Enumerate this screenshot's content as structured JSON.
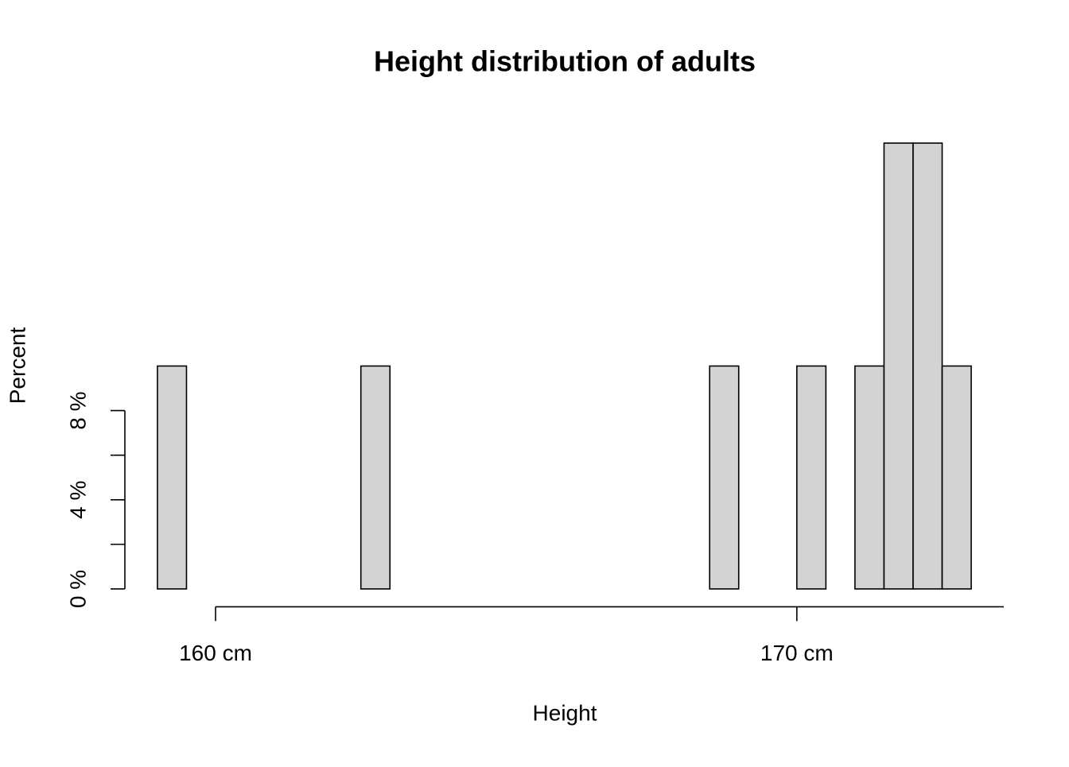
{
  "chart_data": {
    "type": "histogram",
    "title": "Height distribution of adults",
    "x_label": "Height",
    "y_label": "Percent",
    "bins": [
      159,
      159.5,
      160,
      160.5,
      161,
      161.5,
      162,
      162.5,
      163,
      163.5,
      164,
      164.5,
      165,
      165.5,
      166,
      166.5,
      167,
      167.5,
      168,
      168.5,
      169,
      169.5,
      170,
      170.5,
      171,
      171.5,
      172,
      172.5,
      173
    ],
    "values": [
      10,
      0,
      0,
      0,
      0,
      0,
      0,
      10,
      0,
      0,
      0,
      0,
      0,
      0,
      0,
      0,
      0,
      0,
      0,
      10,
      0,
      0,
      10,
      0,
      10,
      20,
      20,
      10
    ],
    "color": "#d3d3d3",
    "xlim": [
      158.44,
      173.56
    ],
    "ylim": [
      -0.8,
      20.8
    ],
    "xticks": [
      {
        "value": 160,
        "label": "160 cm"
      },
      {
        "value": 170,
        "label": "170 cm"
      }
    ],
    "yticks": [
      {
        "value": 0,
        "label": "0 %"
      },
      {
        "value": 2,
        "label": null
      },
      {
        "value": 4,
        "label": "4 %"
      },
      {
        "value": 6,
        "label": null
      },
      {
        "value": 8,
        "label": "8 %"
      }
    ]
  }
}
